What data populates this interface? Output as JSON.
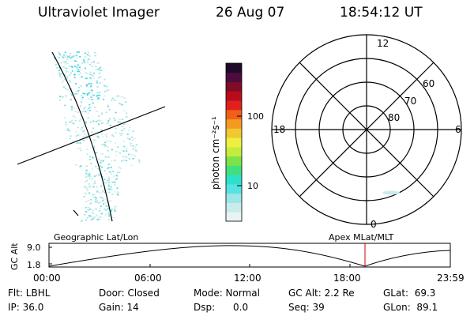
{
  "header": {
    "instrument": "Ultraviolet Imager",
    "date": "26 Aug 07",
    "time": "18:54:12 UT"
  },
  "colorbar": {
    "unit_label": "photon cm⁻²s⁻¹",
    "ticks": [
      "100",
      "10"
    ],
    "colors": [
      "#e8f4f4",
      "#c8ecec",
      "#9ce6e6",
      "#56e2e2",
      "#2fe0c8",
      "#40e080",
      "#7ce24a",
      "#c4ec3c",
      "#ecf040",
      "#f0c830",
      "#f49a20",
      "#f06018",
      "#e02020",
      "#b80c1c",
      "#800c28",
      "#4c0c40",
      "#200a2a"
    ]
  },
  "polar_plot": {
    "lat_labels": [
      "60",
      "70",
      "80"
    ],
    "mlt_labels": {
      "top": "12",
      "left": "18",
      "right": "6",
      "bottom": "0"
    }
  },
  "map": {
    "left_label": "Geographic Lat/Lon",
    "right_label": "Apex MLat/MLT"
  },
  "altitude_chart": {
    "ylabel": "GC Alt",
    "yticks": [
      "9.0",
      "1.8"
    ],
    "xticks": [
      "00:00",
      "06:00",
      "12:00",
      "18:00",
      "23:59"
    ],
    "marker_color": "#d00000"
  },
  "status": {
    "flt": "Flt: LBHL",
    "ip": "IP: 36.0",
    "door": "Door: Closed",
    "gain": "Gain: 14",
    "mode": "Mode: Normal",
    "dsp": "Dsp:      0.0",
    "gc_alt": "GC Alt: 2.2 Re",
    "seq": "Seq: 39",
    "glat": "GLat:  69.3",
    "glon": "GLon:  89.1"
  }
}
